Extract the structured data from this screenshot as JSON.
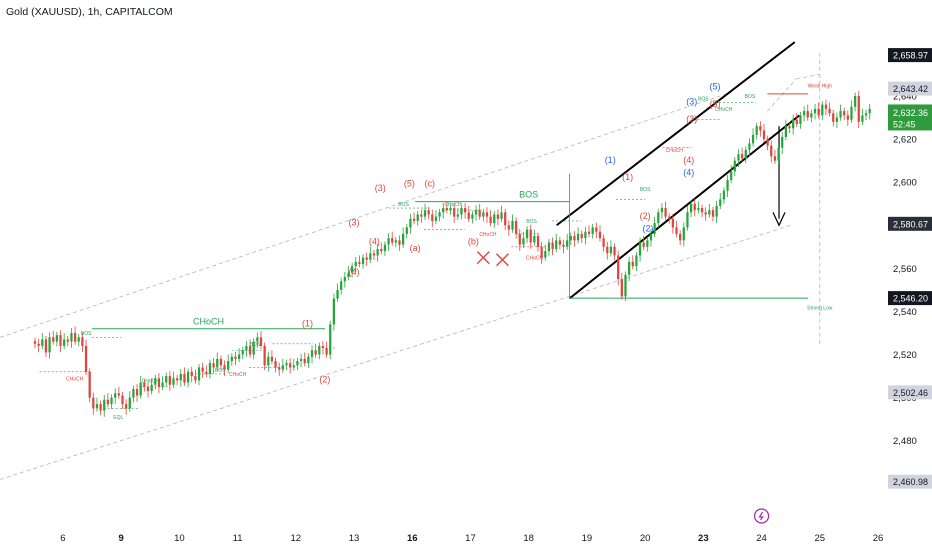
{
  "chart_title": "Gold (XAUUSD), 1h, CAPITALCOM",
  "chart_data": {
    "type": "candlestick",
    "symbol": "Gold (XAUUSD)",
    "timeframe": "1h",
    "broker": "CAPITALCOM",
    "x_ticks": [
      {
        "label": "6",
        "x": 0.0,
        "bold": false
      },
      {
        "label": "9",
        "x": 1.0,
        "bold": true
      },
      {
        "label": "10",
        "x": 2.0,
        "bold": false
      },
      {
        "label": "11",
        "x": 3.0,
        "bold": false
      },
      {
        "label": "12",
        "x": 4.0,
        "bold": false
      },
      {
        "label": "13",
        "x": 5.0,
        "bold": false
      },
      {
        "label": "16",
        "x": 6.0,
        "bold": true
      },
      {
        "label": "17",
        "x": 7.0,
        "bold": false
      },
      {
        "label": "18",
        "x": 8.0,
        "bold": false
      },
      {
        "label": "19",
        "x": 9.0,
        "bold": false
      },
      {
        "label": "20",
        "x": 10.0,
        "bold": false
      },
      {
        "label": "23",
        "x": 11.0,
        "bold": true
      },
      {
        "label": "24",
        "x": 12.0,
        "bold": false
      },
      {
        "label": "25",
        "x": 13.0,
        "bold": false
      },
      {
        "label": "26",
        "x": 14.0,
        "bold": false
      }
    ],
    "y_ticks": [
      2480,
      2500,
      2520,
      2540,
      2560,
      2580,
      2600,
      2620,
      2640
    ],
    "ylim": [
      2452.5,
      2668.3
    ],
    "xlim": [
      -0.48,
      14.0
    ],
    "price_labels": [
      {
        "value": "2,658.97",
        "y": 2658.97,
        "style": "black"
      },
      {
        "value": "2,643.42",
        "y": 2643.42,
        "style": "gray"
      },
      {
        "value": "2,632.36",
        "y": 2632.36,
        "style": "green",
        "countdown": "52:45"
      },
      {
        "value": "2,580.67",
        "y": 2580.67,
        "style": "dark"
      },
      {
        "value": "2,546.20",
        "y": 2546.2,
        "style": "black"
      },
      {
        "value": "2,502.46",
        "y": 2502.46,
        "style": "gray"
      },
      {
        "value": "2,460.98",
        "y": 2460.98,
        "style": "gray"
      }
    ],
    "closes": [
      2525,
      2524,
      2527,
      2521,
      2528,
      2526,
      2529,
      2524,
      2527,
      2526,
      2530,
      2526,
      2528,
      2524,
      2512,
      2500,
      2495,
      2497,
      2494,
      2499,
      2497,
      2500,
      2502,
      2501,
      2497,
      2495,
      2500,
      2504,
      2501,
      2507,
      2505,
      2503,
      2506,
      2509,
      2505,
      2507,
      2510,
      2506,
      2509,
      2508,
      2511,
      2507,
      2512,
      2510,
      2508,
      2514,
      2512,
      2511,
      2516,
      2514,
      2518,
      2515,
      2513,
      2517,
      2519,
      2518,
      2520,
      2522,
      2524,
      2520,
      2526,
      2528,
      2524,
      2515,
      2519,
      2517,
      2514,
      2513,
      2515,
      2516,
      2514,
      2515,
      2517,
      2518,
      2516,
      2519,
      2522,
      2520,
      2524,
      2523,
      2520,
      2534,
      2546,
      2550,
      2554,
      2556,
      2558,
      2561,
      2563,
      2562,
      2565,
      2564,
      2567,
      2566,
      2569,
      2568,
      2571,
      2574,
      2572,
      2573,
      2571,
      2576,
      2579,
      2583,
      2582,
      2585,
      2584,
      2587,
      2585,
      2582,
      2584,
      2586,
      2588,
      2587,
      2588,
      2584,
      2585,
      2588,
      2586,
      2583,
      2585,
      2587,
      2584,
      2586,
      2584,
      2581,
      2585,
      2583,
      2586,
      2580,
      2578,
      2582,
      2576,
      2571,
      2574,
      2578,
      2572,
      2575,
      2570,
      2565,
      2568,
      2572,
      2569,
      2573,
      2571,
      2570,
      2573,
      2575,
      2573,
      2576,
      2574,
      2577,
      2576,
      2579,
      2577,
      2574,
      2570,
      2567,
      2570,
      2566,
      2555,
      2547,
      2557,
      2563,
      2561,
      2566,
      2572,
      2570,
      2573,
      2576,
      2581,
      2586,
      2588,
      2584,
      2583,
      2579,
      2576,
      2573,
      2579,
      2586,
      2590,
      2587,
      2588,
      2586,
      2585,
      2587,
      2584,
      2589,
      2592,
      2596,
      2601,
      2605,
      2610,
      2613,
      2611,
      2615,
      2618,
      2622,
      2626,
      2624,
      2620,
      2617,
      2612,
      2610,
      2616,
      2621,
      2626,
      2625,
      2629,
      2627,
      2631,
      2633,
      2630,
      2632,
      2634,
      2631,
      2636,
      2634,
      2632,
      2628,
      2630,
      2633,
      2631,
      2629,
      2635,
      2640,
      2628,
      2631,
      2632,
      2634
    ]
  },
  "annotations": {
    "choch": "CHoCH",
    "bos": "BOS",
    "eql": "EQL",
    "sbos": "BOS",
    "bos_small": "BOS",
    "strong_low": "Strong Low",
    "weak_high": "Weak High",
    "red_labels": [
      "(1)",
      "(2)",
      "(3)",
      "(4)",
      "(5)",
      "(a)",
      "(b)",
      "(c)"
    ],
    "blue_labels": [
      "(1)",
      "(2)",
      "(3)",
      "(4)",
      "(5)"
    ]
  }
}
